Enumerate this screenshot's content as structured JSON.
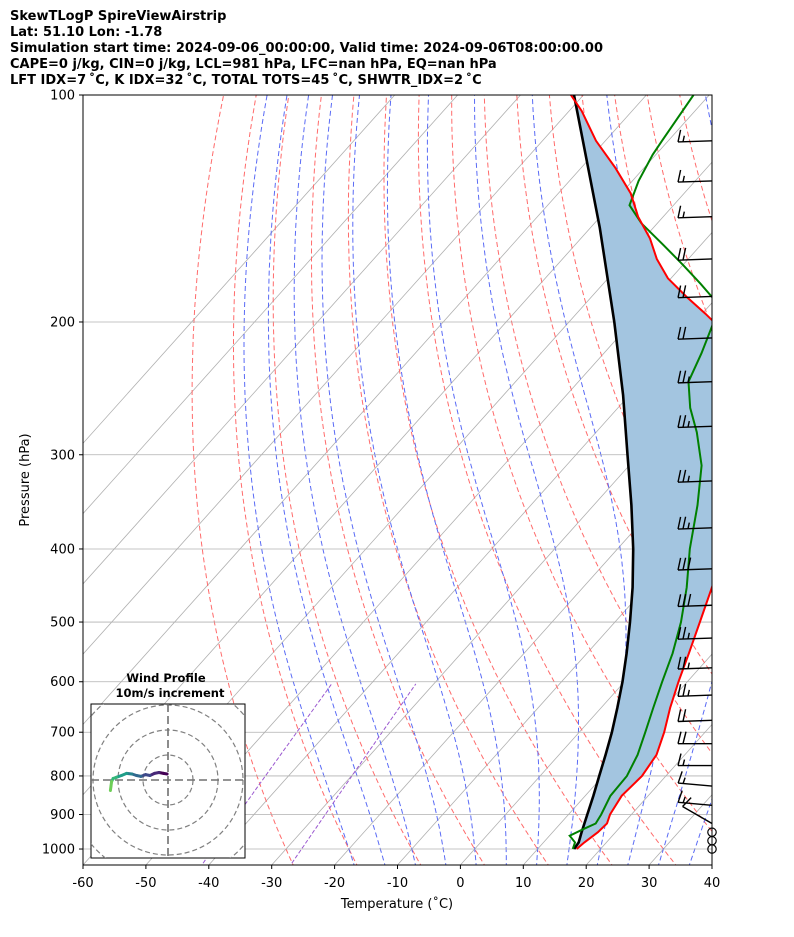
{
  "header": {
    "line1": "SkewTLogP SpireViewAirstrip",
    "line2": "Lat: 51.10   Lon: -1.78",
    "line3": "Simulation start time: 2024-09-06_00:00:00, Valid time: 2024-09-06T08:00:00.00",
    "line4": "CAPE=0 j/kg, CIN=0 j/kg, LCL=981 hPa, LFC=nan hPa, EQ=nan hPa",
    "line5": "LFT IDX=7 ˚C, K IDX=32 ˚C, TOTAL TOTS=45 ˚C, SHWTR_IDX=2 ˚C"
  },
  "colors": {
    "temperature": "#ff0000",
    "dewpoint": "#008000",
    "parcel": "#000000",
    "cape_fill": "#a3c5e0",
    "dry_adiabat": "#ff6b6b",
    "moist_adiabat": "#5a6bf5",
    "mixing_ratio": "#9b59d0",
    "isotherm": "#b0b0b0",
    "grid": "#b0b0b0"
  },
  "chart_data": {
    "type": "line",
    "subtype": "skew-t log-p",
    "xlabel": "Temperature (˚C)",
    "ylabel": "Pressure (hPa)",
    "xlim": [
      -60,
      40
    ],
    "ylim": [
      1050,
      100
    ],
    "x_ticks": [
      -60,
      -50,
      -40,
      -30,
      -20,
      -10,
      0,
      10,
      20,
      30,
      40
    ],
    "y_ticks": [
      1000,
      900,
      800,
      700,
      600,
      500,
      400,
      300,
      200,
      100
    ],
    "series": [
      {
        "name": "Temperature",
        "points": [
          [
            1000,
            16.2
          ],
          [
            980,
            16.5
          ],
          [
            950,
            17.2
          ],
          [
            925,
            17.4
          ],
          [
            900,
            16.6
          ],
          [
            850,
            15.8
          ],
          [
            800,
            16.2
          ],
          [
            750,
            15.5
          ],
          [
            700,
            13.5
          ],
          [
            650,
            11.0
          ],
          [
            600,
            8.6
          ],
          [
            550,
            6.2
          ],
          [
            500,
            3.5
          ],
          [
            450,
            0.5
          ],
          [
            400,
            -3.0
          ],
          [
            350,
            -7.5
          ],
          [
            300,
            -13.0
          ],
          [
            270,
            -17.0
          ],
          [
            240,
            -21.5
          ],
          [
            230,
            -25.0
          ],
          [
            215,
            -30.0
          ],
          [
            205,
            -34.5
          ],
          [
            195,
            -39.5
          ],
          [
            185,
            -45.0
          ],
          [
            175,
            -50.5
          ],
          [
            165,
            -55.0
          ],
          [
            155,
            -59.0
          ],
          [
            145,
            -64.0
          ],
          [
            135,
            -68.5
          ],
          [
            125,
            -74.5
          ],
          [
            115,
            -81.5
          ],
          [
            105,
            -88.0
          ],
          [
            100,
            -92.0
          ]
        ]
      },
      {
        "name": "Dewpoint",
        "points": [
          [
            1000,
            15.6
          ],
          [
            980,
            15.0
          ],
          [
            960,
            13.2
          ],
          [
            940,
            14.5
          ],
          [
            925,
            15.6
          ],
          [
            900,
            15.2
          ],
          [
            850,
            14.0
          ],
          [
            800,
            13.8
          ],
          [
            750,
            12.5
          ],
          [
            700,
            10.5
          ],
          [
            650,
            8.3
          ],
          [
            600,
            6.0
          ],
          [
            550,
            3.6
          ],
          [
            500,
            0.5
          ],
          [
            450,
            -3.5
          ],
          [
            400,
            -8.5
          ],
          [
            350,
            -13.5
          ],
          [
            310,
            -18.5
          ],
          [
            280,
            -24.0
          ],
          [
            260,
            -28.5
          ],
          [
            240,
            -32.5
          ],
          [
            220,
            -34.5
          ],
          [
            200,
            -37.0
          ],
          [
            188,
            -39.5
          ],
          [
            178,
            -44.5
          ],
          [
            168,
            -50.0
          ],
          [
            158,
            -56.0
          ],
          [
            148,
            -62.5
          ],
          [
            140,
            -67.0
          ],
          [
            130,
            -69.0
          ],
          [
            120,
            -70.5
          ],
          [
            115,
            -71.0
          ],
          [
            100,
            -72.5
          ]
        ]
      },
      {
        "name": "Parcel",
        "points": [
          [
            1000,
            15.8
          ],
          [
            980,
            15.6
          ],
          [
            950,
            14.6
          ],
          [
            925,
            13.8
          ],
          [
            900,
            13.0
          ],
          [
            850,
            11.3
          ],
          [
            800,
            9.4
          ],
          [
            750,
            7.4
          ],
          [
            700,
            5.2
          ],
          [
            650,
            2.6
          ],
          [
            600,
            -0.3
          ],
          [
            550,
            -3.7
          ],
          [
            500,
            -7.6
          ],
          [
            450,
            -12.1
          ],
          [
            400,
            -17.5
          ],
          [
            350,
            -24.0
          ],
          [
            300,
            -31.8
          ],
          [
            250,
            -41.0
          ],
          [
            200,
            -52.8
          ],
          [
            150,
            -68.5
          ],
          [
            100,
            -91.5
          ]
        ]
      }
    ],
    "background_lines": {
      "isotherms_c": [
        -120,
        -110,
        -100,
        -90,
        -80,
        -70,
        -60,
        -50,
        -40,
        -30,
        -20,
        -10,
        0,
        10,
        20,
        30,
        40
      ],
      "dry_adiabats_c": [
        -30,
        -20,
        -10,
        0,
        10,
        20,
        30,
        40,
        50,
        60,
        70,
        80,
        90,
        100,
        110,
        120,
        130
      ],
      "moist_adiabats_c": [
        -20,
        -15,
        -10,
        -5,
        0,
        5,
        10,
        15,
        20,
        25,
        30,
        35,
        40
      ],
      "mixing_ratios_gkg": [
        0.1,
        0.4
      ]
    },
    "wind_barbs": {
      "units": "knots",
      "levels": [
        {
          "p": 1000,
          "speed": 0,
          "dir": 0
        },
        {
          "p": 975,
          "speed": 0,
          "dir": 0
        },
        {
          "p": 950,
          "speed": 0,
          "dir": 0
        },
        {
          "p": 925,
          "speed": 10,
          "dir": 300
        },
        {
          "p": 875,
          "speed": 15,
          "dir": 275
        },
        {
          "p": 825,
          "speed": 15,
          "dir": 275
        },
        {
          "p": 775,
          "speed": 15,
          "dir": 270
        },
        {
          "p": 725,
          "speed": 20,
          "dir": 270
        },
        {
          "p": 675,
          "speed": 20,
          "dir": 268
        },
        {
          "p": 625,
          "speed": 25,
          "dir": 268
        },
        {
          "p": 575,
          "speed": 25,
          "dir": 268
        },
        {
          "p": 525,
          "speed": 25,
          "dir": 268
        },
        {
          "p": 475,
          "speed": 30,
          "dir": 268
        },
        {
          "p": 425,
          "speed": 30,
          "dir": 268
        },
        {
          "p": 375,
          "speed": 25,
          "dir": 268
        },
        {
          "p": 325,
          "speed": 25,
          "dir": 268
        },
        {
          "p": 275,
          "speed": 25,
          "dir": 268
        },
        {
          "p": 240,
          "speed": 25,
          "dir": 268
        },
        {
          "p": 210,
          "speed": 20,
          "dir": 268
        },
        {
          "p": 185,
          "speed": 20,
          "dir": 268
        },
        {
          "p": 165,
          "speed": 20,
          "dir": 268
        },
        {
          "p": 145,
          "speed": 15,
          "dir": 268
        },
        {
          "p": 130,
          "speed": 15,
          "dir": 268
        },
        {
          "p": 115,
          "speed": 15,
          "dir": 268
        }
      ]
    },
    "hodograph": {
      "title_line1": "Wind Profile",
      "title_line2": "10m/s increment",
      "ring_increment_ms": 10,
      "rings": 3,
      "points": [
        [
          -0.3,
          2.0
        ],
        [
          -1.5,
          2.2
        ],
        [
          -3.0,
          2.5
        ],
        [
          -4.5,
          2.2
        ],
        [
          -6.0,
          1.5
        ],
        [
          -7.5,
          1.8
        ],
        [
          -9.0,
          1.2
        ],
        [
          -10.5,
          1.5
        ],
        [
          -12.0,
          2.0
        ],
        [
          -13.8,
          2.2
        ],
        [
          -15.5,
          1.5
        ],
        [
          -17.2,
          0.9
        ],
        [
          -18.3,
          0.5
        ],
        [
          -18.8,
          -0.5
        ],
        [
          -19.0,
          -2.0
        ],
        [
          -19.2,
          -3.5
        ]
      ]
    }
  }
}
